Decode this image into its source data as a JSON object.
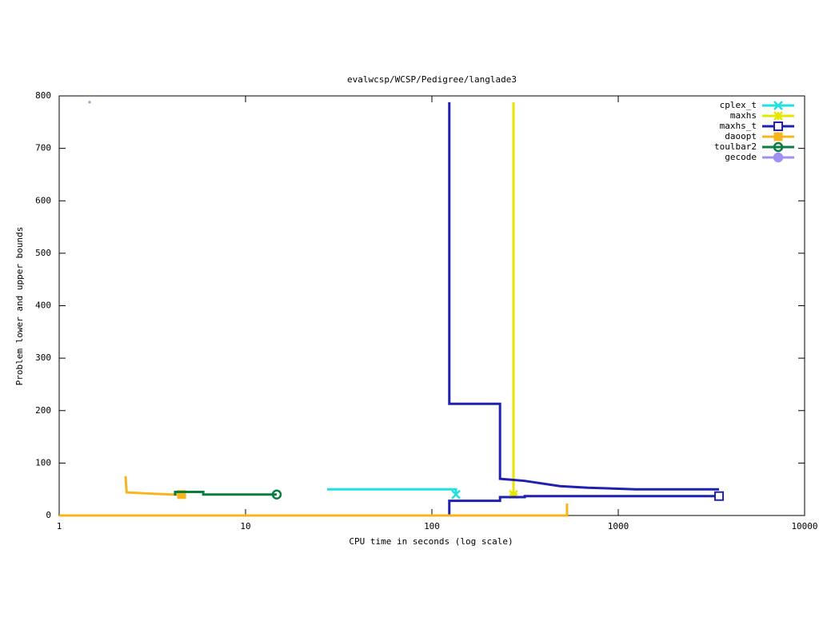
{
  "chart_data": {
    "type": "line",
    "title": "evalwcsp/WCSP/Pedigree/langlade3",
    "xlabel": "CPU time in seconds (log scale)",
    "ylabel": "Problem lower and upper bounds",
    "xscale": "log",
    "xlim": [
      1,
      10000
    ],
    "xticks": [
      1,
      10,
      100,
      1000,
      10000
    ],
    "ylim": [
      0,
      800
    ],
    "yticks": [
      0,
      100,
      200,
      300,
      400,
      500,
      600,
      700,
      800
    ],
    "legend": "upper right",
    "series": [
      {
        "name": "cplex_t",
        "color": "#22e0e0",
        "marker": "x",
        "x": [
          27.4,
          134.6,
          134.6
        ],
        "values": [
          50,
          50,
          40
        ]
      },
      {
        "name": "maxhs",
        "color": "#e6e600",
        "marker": "star",
        "x": [
          274,
          274
        ],
        "values": [
          788,
          40
        ]
      },
      {
        "name": "maxhs_t",
        "color": "#2020b0",
        "marker": "square",
        "x": [
          124,
          124,
          232,
          232,
          315,
          486,
          687,
          1242,
          3475,
          null,
          124,
          124,
          232,
          232,
          315,
          315,
          3475
        ],
        "values": [
          788,
          213,
          213,
          70,
          66,
          56,
          53,
          50,
          50,
          null,
          0,
          28,
          28,
          35,
          35,
          37,
          37
        ]
      },
      {
        "name": "daoopt",
        "color": "#f8b41c",
        "marker": "filled-square",
        "x": [
          1,
          531,
          531,
          null,
          2.27,
          2.3,
          3,
          4,
          4.54
        ],
        "values": [
          0,
          0,
          23,
          null,
          75,
          44,
          42,
          40,
          40
        ]
      },
      {
        "name": "toulbar2",
        "color": "#0a7d40",
        "marker": "circle",
        "x": [
          4.19,
          4.19,
          5.93,
          5.93,
          14.7
        ],
        "values": [
          38,
          45,
          45,
          40,
          40
        ]
      },
      {
        "name": "gecode",
        "color": "#a090f0",
        "marker": "filled-circle",
        "x": [
          1.456
        ],
        "values": [
          788
        ]
      }
    ]
  }
}
